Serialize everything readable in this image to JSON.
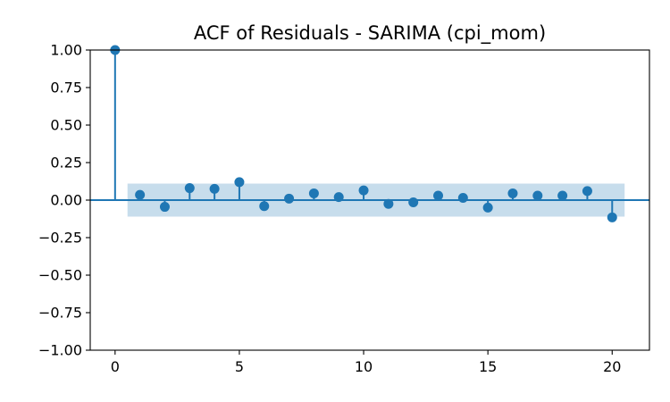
{
  "chart_data": {
    "type": "scatter",
    "subtype": "stem",
    "title": "ACF of Residuals - SARIMA (cpi_mom)",
    "xlabel": "",
    "ylabel": "",
    "xlim": [
      -1,
      21.5
    ],
    "ylim": [
      -1.0,
      1.0
    ],
    "x_ticks": [
      0,
      5,
      10,
      15,
      20
    ],
    "x_tick_labels": [
      "0",
      "5",
      "10",
      "15",
      "20"
    ],
    "y_ticks": [
      1.0,
      0.75,
      0.5,
      0.25,
      0.0,
      -0.25,
      -0.5,
      -0.75,
      -1.0
    ],
    "y_tick_labels": [
      "1.00",
      "0.75",
      "0.50",
      "0.25",
      "0.00",
      "−0.25",
      "−0.50",
      "−0.75",
      "−1.00"
    ],
    "grid": false,
    "lags": [
      0,
      1,
      2,
      3,
      4,
      5,
      6,
      7,
      8,
      9,
      10,
      11,
      12,
      13,
      14,
      15,
      16,
      17,
      18,
      19,
      20
    ],
    "values": [
      1.0,
      0.035,
      -0.045,
      0.08,
      0.075,
      0.12,
      -0.04,
      0.01,
      0.045,
      0.02,
      0.065,
      -0.025,
      -0.015,
      0.03,
      0.015,
      -0.05,
      0.045,
      0.03,
      0.03,
      0.06,
      -0.115
    ],
    "confidence_band": {
      "x_start": 0.5,
      "x_end": 20.5,
      "upper": 0.11,
      "lower": -0.11
    },
    "colors": {
      "stem": "#1f77b4",
      "band": "#1f77b4",
      "band_opacity": 0.25
    }
  }
}
